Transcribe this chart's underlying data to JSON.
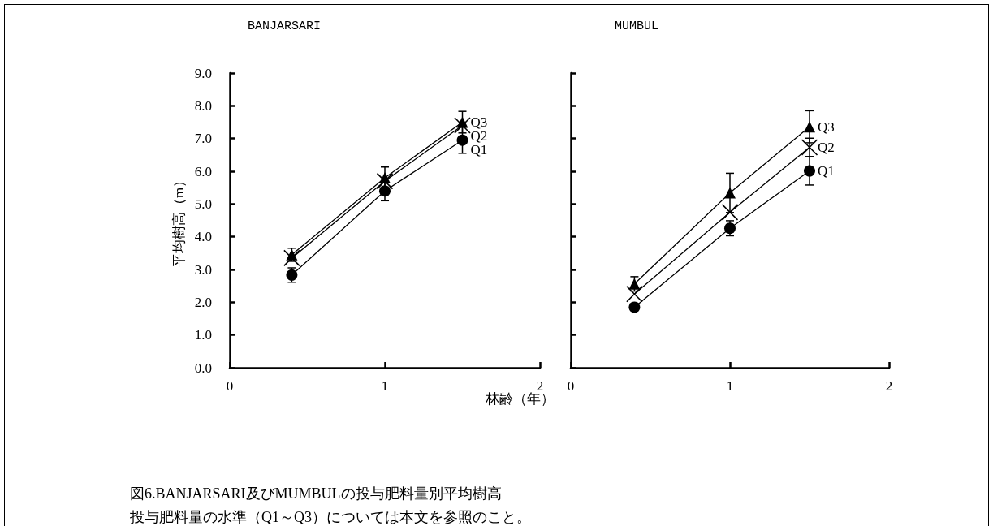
{
  "chart_data": [
    {
      "type": "line",
      "title": "BANJARSARI",
      "ylabel": "平均樹高（m）",
      "xlabel": "林齢（年）",
      "annotations": [
        "図6.BANJARSARI及びMUMBULの投与肥料量別平均樹高",
        "投与肥料量の水準（Q1～Q3）については本文を参照のこと。"
      ],
      "x": [
        0.4,
        1,
        1.5
      ],
      "xlim": [
        0,
        2
      ],
      "xticks": [
        0,
        1,
        2
      ],
      "ylim": [
        0,
        9
      ],
      "yticks": [
        {
          "value": 0,
          "label": "0.0"
        },
        {
          "value": 1,
          "label": "1.0"
        },
        {
          "value": 2,
          "label": "2.0"
        },
        {
          "value": 3,
          "label": "3.0"
        },
        {
          "value": 4,
          "label": "4.0"
        },
        {
          "value": 5,
          "label": "5.0"
        },
        {
          "value": 6,
          "label": "6.0"
        },
        {
          "value": 7,
          "label": "7.0"
        },
        {
          "value": 8,
          "label": "8.0"
        },
        {
          "value": 9,
          "label": "9.0"
        }
      ],
      "grid": false,
      "legend": false,
      "line_style": "solid",
      "series": [
        {
          "name": "Q1",
          "color": "#000000",
          "marker": "circle",
          "values": [
            2.83,
            5.4,
            6.95
          ],
          "errors": [
            0.22,
            0.3,
            0.4
          ]
        },
        {
          "name": "Q2",
          "color": "#000000",
          "marker": "cross",
          "values": [
            3.35,
            5.7,
            7.4
          ]
        },
        {
          "name": "Q3",
          "color": "#000000",
          "marker": "triangle",
          "values": [
            3.45,
            5.8,
            7.5
          ],
          "errors": [
            0.2,
            0.33,
            0.33
          ]
        }
      ]
    },
    {
      "type": "line",
      "title": "MUMBUL",
      "x": [
        0.4,
        1,
        1.5
      ],
      "xlim": [
        0,
        2
      ],
      "xticks": [
        0,
        1,
        2
      ],
      "ylim": [
        0,
        9
      ],
      "yticks": [
        0,
        1,
        2,
        3,
        4,
        5,
        6,
        7,
        8,
        9
      ],
      "tick_labels": "x",
      "grid": false,
      "legend": false,
      "line_style": "solid",
      "series": [
        {
          "name": "Q1",
          "color": "#000000",
          "marker": "circle",
          "values": [
            1.85,
            4.26,
            6.01
          ],
          "errors": [
            null,
            0.23,
            0.43
          ]
        },
        {
          "name": "Q2",
          "color": "#000000",
          "marker": "cross",
          "values": [
            2.25,
            4.75,
            6.73
          ],
          "errors": [
            null,
            null,
            0.28
          ]
        },
        {
          "name": "Q3",
          "color": "#000000",
          "marker": "triangle",
          "values": [
            2.56,
            5.34,
            7.36
          ],
          "errors": [
            0.22,
            0.6,
            0.49
          ]
        }
      ]
    }
  ]
}
